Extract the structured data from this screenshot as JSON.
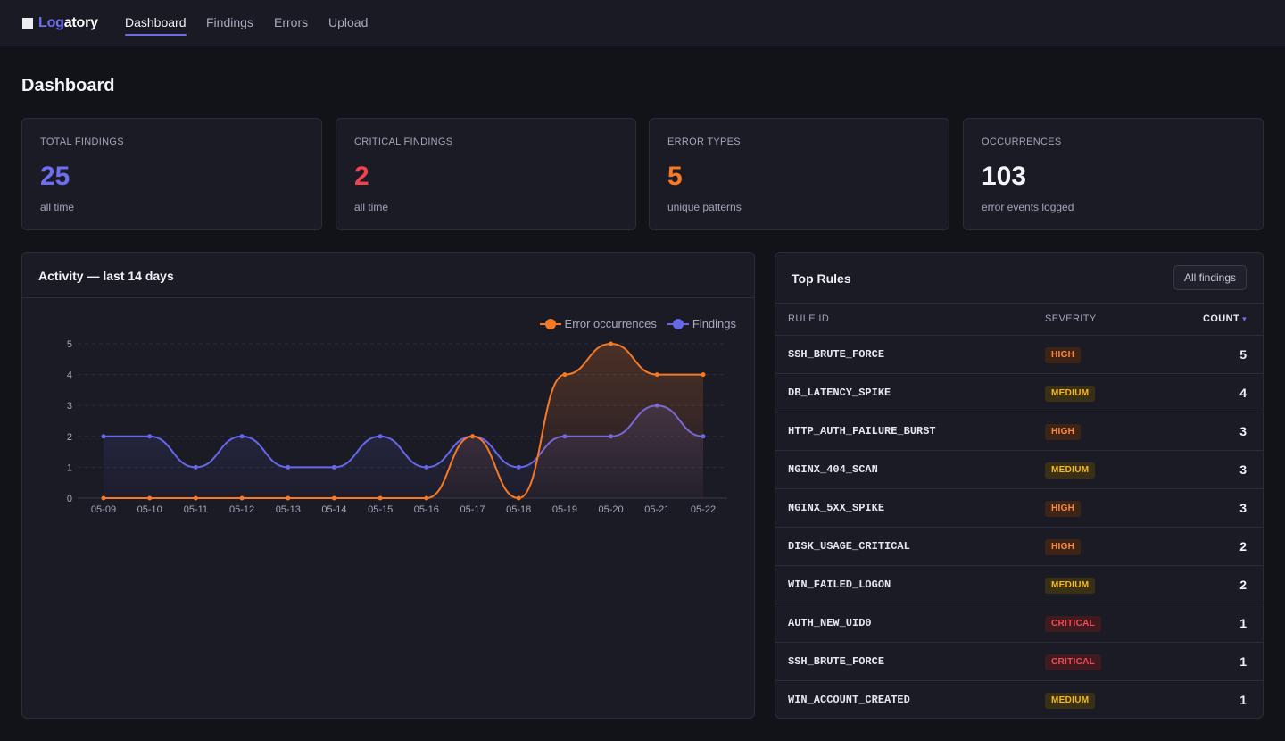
{
  "app": {
    "brand_prefix": "Log",
    "brand_suffix": "atory"
  },
  "nav": {
    "items": [
      {
        "label": "Dashboard",
        "active": true
      },
      {
        "label": "Findings",
        "active": false
      },
      {
        "label": "Errors",
        "active": false
      },
      {
        "label": "Upload",
        "active": false
      }
    ]
  },
  "page": {
    "title": "Dashboard"
  },
  "stats": [
    {
      "label": "TOTAL FINDINGS",
      "value": "25",
      "sub": "all time",
      "color": "#6e6ef0"
    },
    {
      "label": "CRITICAL FINDINGS",
      "value": "2",
      "sub": "all time",
      "color": "#f0434d"
    },
    {
      "label": "ERROR TYPES",
      "value": "5",
      "sub": "unique patterns",
      "color": "#f67a26"
    },
    {
      "label": "OCCURRENCES",
      "value": "103",
      "sub": "error events logged",
      "color": "#f4f4f8"
    }
  ],
  "activity": {
    "title": "Activity — last 14 days"
  },
  "chart_data": {
    "type": "line",
    "x": [
      "05-09",
      "05-10",
      "05-11",
      "05-12",
      "05-13",
      "05-14",
      "05-15",
      "05-16",
      "05-17",
      "05-18",
      "05-19",
      "05-20",
      "05-21",
      "05-22"
    ],
    "series": [
      {
        "name": "Error occurrences",
        "color": "#f67a26",
        "values": [
          0,
          0,
          0,
          0,
          0,
          0,
          0,
          0,
          2,
          0,
          4,
          5,
          4,
          4
        ]
      },
      {
        "name": "Findings",
        "color": "#6767ea",
        "values": [
          2,
          2,
          1,
          2,
          1,
          1,
          2,
          1,
          2,
          1,
          2,
          2,
          3,
          2
        ]
      }
    ],
    "yticks": [
      0,
      1,
      2,
      3,
      4,
      5
    ],
    "ylim": [
      0,
      5
    ],
    "grid": true,
    "legend": "top-right"
  },
  "top_rules": {
    "title": "Top Rules",
    "button": "All findings",
    "columns": {
      "rule": "RULE ID",
      "severity": "SEVERITY",
      "count": "COUNT"
    },
    "rows": [
      {
        "rule": "SSH_BRUTE_FORCE",
        "severity": "HIGH",
        "count": "5"
      },
      {
        "rule": "DB_LATENCY_SPIKE",
        "severity": "MEDIUM",
        "count": "4"
      },
      {
        "rule": "HTTP_AUTH_FAILURE_BURST",
        "severity": "HIGH",
        "count": "3"
      },
      {
        "rule": "NGINX_404_SCAN",
        "severity": "MEDIUM",
        "count": "3"
      },
      {
        "rule": "NGINX_5XX_SPIKE",
        "severity": "HIGH",
        "count": "3"
      },
      {
        "rule": "DISK_USAGE_CRITICAL",
        "severity": "HIGH",
        "count": "2"
      },
      {
        "rule": "WIN_FAILED_LOGON",
        "severity": "MEDIUM",
        "count": "2"
      },
      {
        "rule": "AUTH_NEW_UID0",
        "severity": "CRITICAL",
        "count": "1"
      },
      {
        "rule": "SSH_BRUTE_FORCE",
        "severity": "CRITICAL",
        "count": "1"
      },
      {
        "rule": "WIN_ACCOUNT_CREATED",
        "severity": "MEDIUM",
        "count": "1"
      }
    ]
  }
}
